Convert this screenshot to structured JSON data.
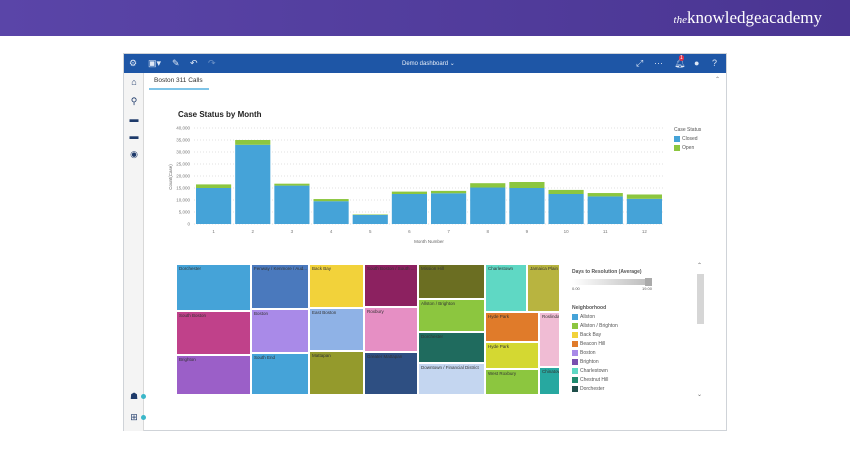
{
  "brand": {
    "logo_prefix": "the",
    "logo_text": "knowledgeacademy"
  },
  "header": {
    "title": "Demo dashboard",
    "notification_count": "1"
  },
  "tabs": [
    {
      "label": "Boston 311 Calls",
      "active": true
    }
  ],
  "chart_data": {
    "type": "bar",
    "stacked": true,
    "title": "Case Status by Month",
    "xlabel": "Month Number",
    "ylabel": "Count(Case)",
    "ylim": [
      0,
      40000
    ],
    "yticks": [
      "0",
      "5,000",
      "10,000",
      "15,000",
      "20,000",
      "25,000",
      "30,000",
      "35,000",
      "40,000"
    ],
    "categories": [
      "1",
      "2",
      "3",
      "4",
      "5",
      "6",
      "7",
      "8",
      "9",
      "10",
      "11",
      "12"
    ],
    "series": [
      {
        "name": "Closed",
        "color": "#45a3d8",
        "values": [
          15000,
          33000,
          16000,
          9500,
          3800,
          12500,
          12800,
          15200,
          15000,
          12500,
          11500,
          10500
        ]
      },
      {
        "name": "Open",
        "color": "#8cc63f",
        "values": [
          1500,
          2000,
          800,
          900,
          200,
          1000,
          1000,
          1800,
          2500,
          1700,
          1400,
          1800
        ]
      }
    ],
    "legend_title": "Case Status",
    "legend_position": "right",
    "grid": true
  },
  "treemap": {
    "cells": [
      {
        "label": "Dorchester",
        "color": "#45a3d8"
      },
      {
        "label": "South Boston",
        "color": "#c0418a"
      },
      {
        "label": "Brighton",
        "color": "#9b5fc8"
      },
      {
        "label": "Fenway / Kenmore / Aud...",
        "color": "#4a79bd"
      },
      {
        "label": "Boston",
        "color": "#a98ae8"
      },
      {
        "label": "South End",
        "color": "#45a3d8"
      },
      {
        "label": "Back Bay",
        "color": "#f2d23a"
      },
      {
        "label": "East Boston",
        "color": "#8fb2e6"
      },
      {
        "label": "Mattapan",
        "color": "#949a2c"
      },
      {
        "label": "South Boston / South ...",
        "color": "#8c2160"
      },
      {
        "label": "Roxbury",
        "color": "#e68fc4"
      },
      {
        "label": "Greater Mattapan",
        "color": "#2e4f82"
      },
      {
        "label": "Mission Hill",
        "color": "#6b6e22"
      },
      {
        "label": "Allston / Brighton",
        "color": "#8cc63f"
      },
      {
        "label": "Dorchester",
        "color": "#1f6b5e"
      },
      {
        "label": "Downtown / Financial District",
        "color": "#c4d6f0"
      },
      {
        "label": "Charlestown",
        "color": "#5fd8c4"
      },
      {
        "label": "Hyde Park",
        "color": "#e07b2a"
      },
      {
        "label": "Hyde Park",
        "color": "#d4d832"
      },
      {
        "label": "West Roxbury",
        "color": "#8cc63f"
      },
      {
        "label": "Jamaica Plain",
        "color": "#b8b440"
      },
      {
        "label": "Roslindale",
        "color": "#f0bcd4"
      },
      {
        "label": "Chinatown",
        "color": "#27a8a0"
      }
    ],
    "gradient_legend": {
      "title": "Days to Resolution (Average)",
      "min": "0.00",
      "max": "19.00"
    },
    "legend_title": "Neighborhood",
    "legend_items": [
      {
        "label": "Allston",
        "color": "#45a3d8"
      },
      {
        "label": "Allston / Brighton",
        "color": "#8cc63f"
      },
      {
        "label": "Back Bay",
        "color": "#f2d23a"
      },
      {
        "label": "Beacon Hill",
        "color": "#e07b2a"
      },
      {
        "label": "Boston",
        "color": "#a98ae8"
      },
      {
        "label": "Brighton",
        "color": "#7a4fb0"
      },
      {
        "label": "Charlestown",
        "color": "#5fd8c4"
      },
      {
        "label": "Chestnut Hill",
        "color": "#1f8a6e"
      },
      {
        "label": "Dorchester",
        "color": "#1f4f4a"
      }
    ]
  }
}
